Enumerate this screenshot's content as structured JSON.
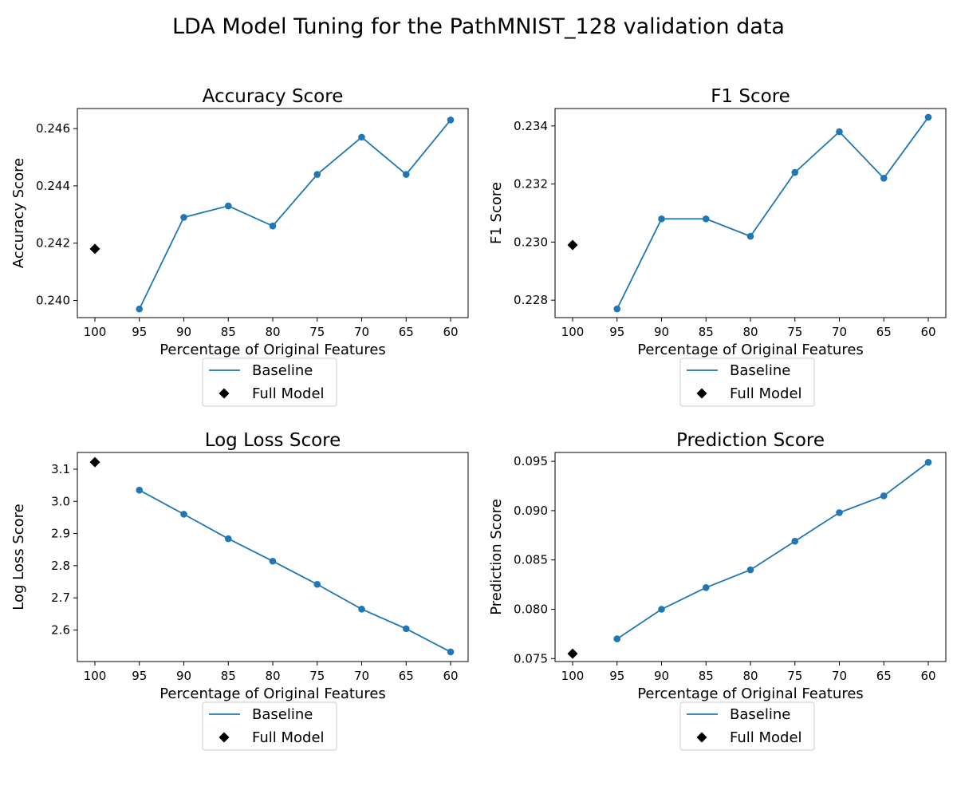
{
  "figure_title": "LDA Model Tuning for the PathMNIST_128 validation data",
  "colors": {
    "baseline": "#1f77b4",
    "full_model": "#000000",
    "axes": "#000000",
    "legend_border": "#cccccc"
  },
  "chart_data": [
    {
      "type": "line",
      "title": "Accuracy Score",
      "xlabel": "Percentage of Original Features",
      "ylabel": "Accuracy Score",
      "x_ticks": [
        "100",
        "95",
        "90",
        "85",
        "80",
        "75",
        "70",
        "65",
        "60"
      ],
      "yticks": [
        0.24,
        0.242,
        0.244,
        0.246
      ],
      "ytick_labels": [
        "0.240",
        "0.242",
        "0.244",
        "0.246"
      ],
      "ylim": [
        0.2394,
        0.2467
      ],
      "series": [
        {
          "name": "Baseline",
          "marker": "circle",
          "x": [
            "95",
            "90",
            "85",
            "80",
            "75",
            "70",
            "65",
            "60"
          ],
          "values": [
            0.2397,
            0.2429,
            0.2433,
            0.2426,
            0.2444,
            0.2457,
            0.2444,
            0.2463
          ]
        },
        {
          "name": "Full Model",
          "marker": "diamond",
          "x": [
            "100"
          ],
          "values": [
            0.2418
          ]
        }
      ],
      "legend": {
        "placement": "below-axes",
        "entries": [
          "Baseline",
          "Full Model"
        ]
      }
    },
    {
      "type": "line",
      "title": "F1 Score",
      "xlabel": "Percentage of Original Features",
      "ylabel": "F1 Score",
      "x_ticks": [
        "100",
        "95",
        "90",
        "85",
        "80",
        "75",
        "70",
        "65",
        "60"
      ],
      "yticks": [
        0.228,
        0.23,
        0.232,
        0.234
      ],
      "ytick_labels": [
        "0.228",
        "0.230",
        "0.232",
        "0.234"
      ],
      "ylim": [
        0.2274,
        0.2346
      ],
      "series": [
        {
          "name": "Baseline",
          "marker": "circle",
          "x": [
            "95",
            "90",
            "85",
            "80",
            "75",
            "70",
            "65",
            "60"
          ],
          "values": [
            0.2277,
            0.2308,
            0.2308,
            0.2302,
            0.2324,
            0.2338,
            0.2322,
            0.2343
          ]
        },
        {
          "name": "Full Model",
          "marker": "diamond",
          "x": [
            "100"
          ],
          "values": [
            0.2299
          ]
        }
      ],
      "legend": {
        "placement": "below-axes",
        "entries": [
          "Baseline",
          "Full Model"
        ]
      }
    },
    {
      "type": "line",
      "title": "Log Loss Score",
      "xlabel": "Percentage of Original Features",
      "ylabel": "Log Loss Score",
      "x_ticks": [
        "100",
        "95",
        "90",
        "85",
        "80",
        "75",
        "70",
        "65",
        "60"
      ],
      "yticks": [
        2.6,
        2.7,
        2.8,
        2.9,
        3.0,
        3.1
      ],
      "ytick_labels": [
        "2.6",
        "2.7",
        "2.8",
        "2.9",
        "3.0",
        "3.1"
      ],
      "ylim": [
        2.502,
        3.152
      ],
      "series": [
        {
          "name": "Baseline",
          "marker": "circle",
          "x": [
            "95",
            "90",
            "85",
            "80",
            "75",
            "70",
            "65",
            "60"
          ],
          "values": [
            3.035,
            2.96,
            2.884,
            2.814,
            2.742,
            2.665,
            2.604,
            2.532
          ]
        },
        {
          "name": "Full Model",
          "marker": "diamond",
          "x": [
            "100"
          ],
          "values": [
            3.122
          ]
        }
      ],
      "legend": {
        "placement": "below-axes",
        "entries": [
          "Baseline",
          "Full Model"
        ]
      }
    },
    {
      "type": "line",
      "title": "Prediction Score",
      "xlabel": "Percentage of Original Features",
      "ylabel": "Prediction Score",
      "x_ticks": [
        "100",
        "95",
        "90",
        "85",
        "80",
        "75",
        "70",
        "65",
        "60"
      ],
      "yticks": [
        0.075,
        0.08,
        0.085,
        0.09,
        0.095
      ],
      "ytick_labels": [
        "0.075",
        "0.080",
        "0.085",
        "0.090",
        "0.095"
      ],
      "ylim": [
        0.0747,
        0.0959
      ],
      "series": [
        {
          "name": "Baseline",
          "marker": "circle",
          "x": [
            "95",
            "90",
            "85",
            "80",
            "75",
            "70",
            "65",
            "60"
          ],
          "values": [
            0.077,
            0.08,
            0.0822,
            0.084,
            0.0869,
            0.0898,
            0.0915,
            0.0949
          ]
        },
        {
          "name": "Full Model",
          "marker": "diamond",
          "x": [
            "100"
          ],
          "values": [
            0.0755
          ]
        }
      ],
      "legend": {
        "placement": "below-axes",
        "entries": [
          "Baseline",
          "Full Model"
        ]
      }
    }
  ]
}
